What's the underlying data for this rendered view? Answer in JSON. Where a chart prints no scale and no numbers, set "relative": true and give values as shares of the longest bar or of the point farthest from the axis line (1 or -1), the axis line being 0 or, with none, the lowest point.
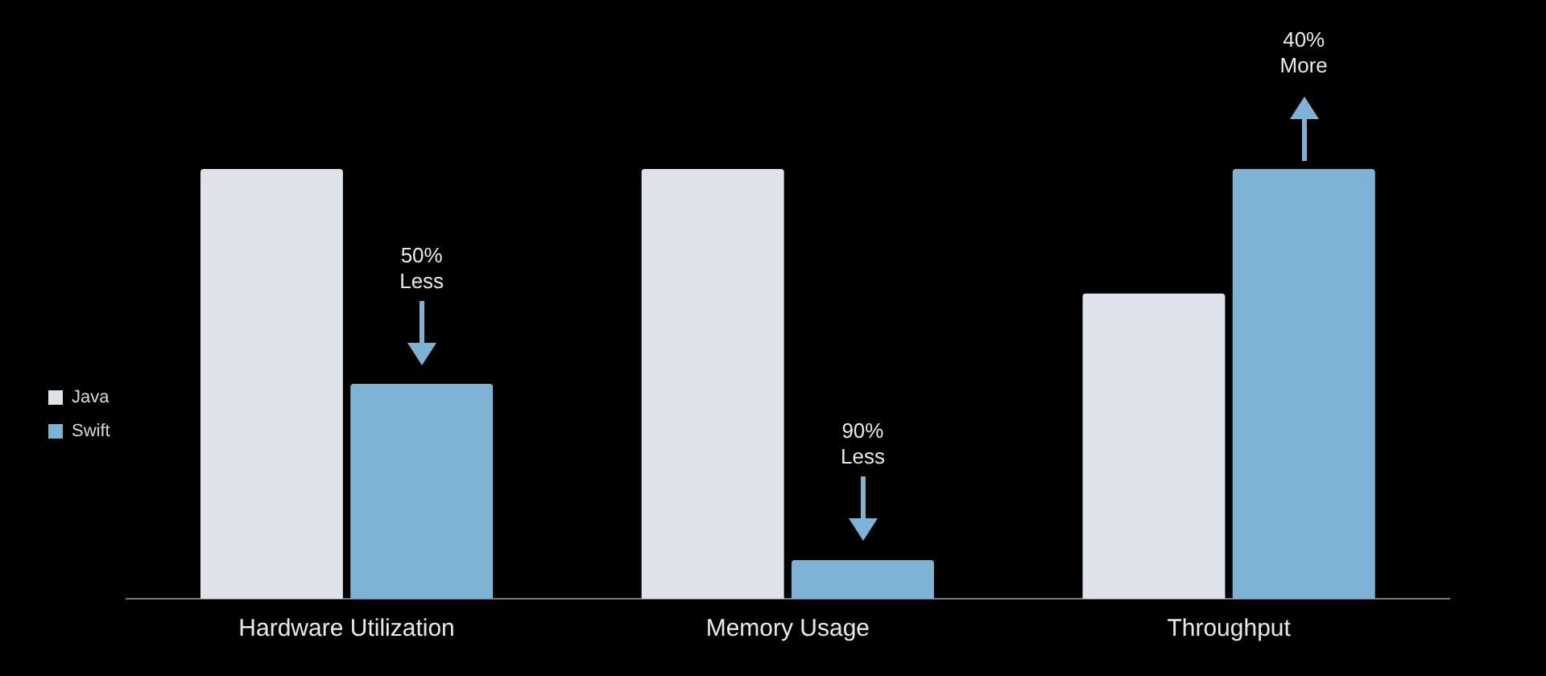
{
  "chart_data": {
    "type": "bar",
    "relative": true,
    "categories": [
      "Hardware Utilization",
      "Memory Usage",
      "Throughput"
    ],
    "series": [
      {
        "name": "Java",
        "color": "#dde3e8",
        "values": [
          1,
          1,
          0.71
        ]
      },
      {
        "name": "Swift",
        "color": "#7fb3d5",
        "values": [
          0.5,
          0.09,
          1
        ]
      }
    ],
    "legend": "left",
    "annotations": [
      "50% Less",
      "90% Less",
      "40% More"
    ]
  }
}
